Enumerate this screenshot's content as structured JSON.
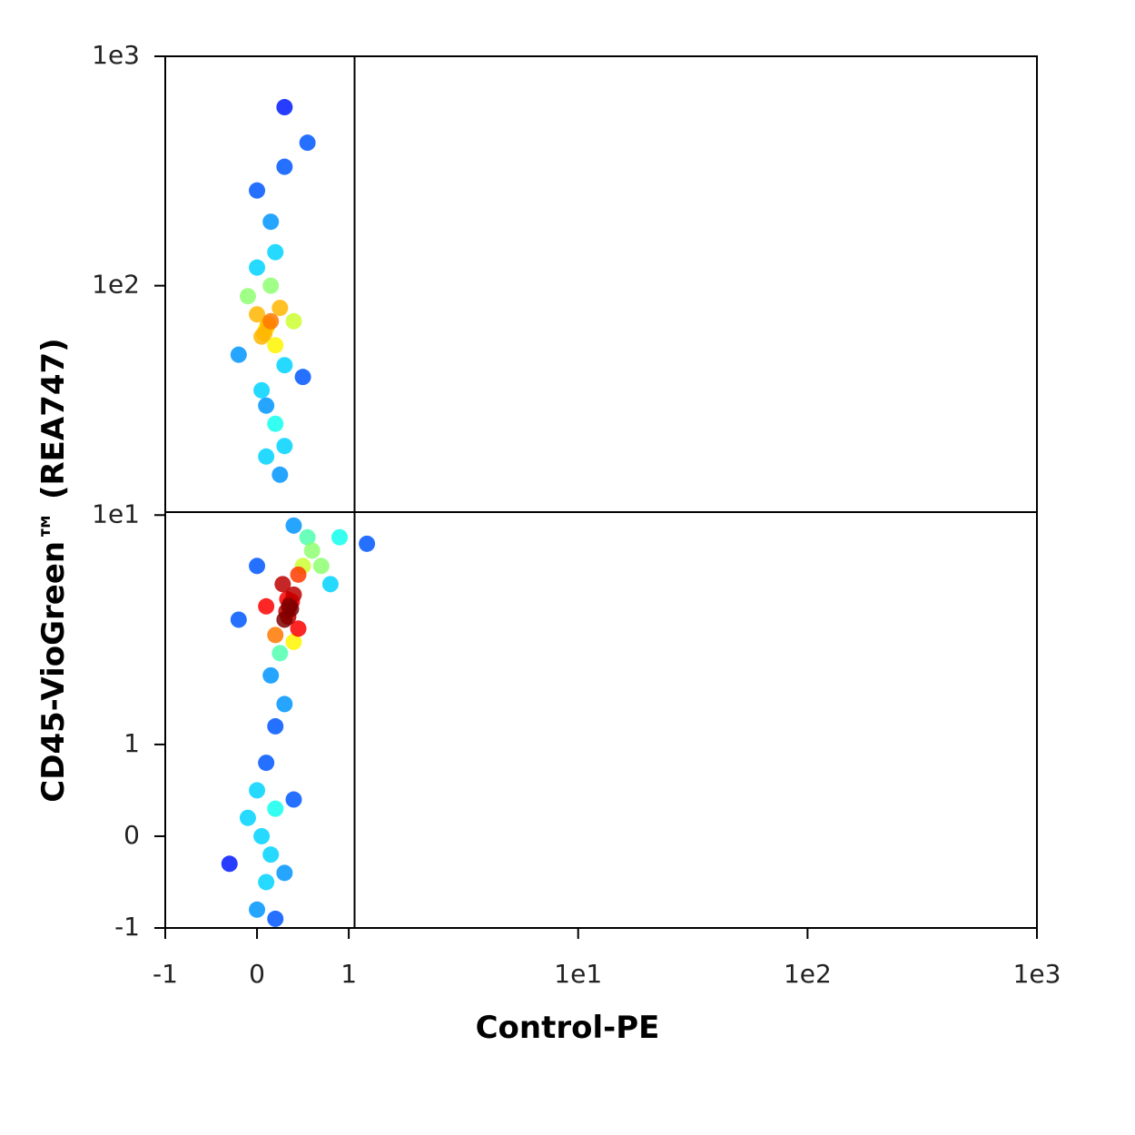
{
  "chart_data": {
    "type": "scatter",
    "scale": "biexponential",
    "xlabel": "Control-PE",
    "ylabel": "CD45-VioGreen™ (REA747)",
    "xlim": [
      -1,
      1000
    ],
    "ylim": [
      -1,
      1000
    ],
    "xticks": [
      -1,
      0,
      1,
      {
        "value": 10,
        "label": "1e1"
      },
      {
        "value": 100,
        "label": "1e2"
      },
      {
        "value": 1000,
        "label": "1e3"
      }
    ],
    "yticks": [
      -1,
      0,
      1,
      {
        "value": 10,
        "label": "1e1"
      },
      {
        "value": 100,
        "label": "1e2"
      },
      {
        "value": 1000,
        "label": "1e3"
      }
    ],
    "quadrant_gate": {
      "x": 1.06,
      "y": 10.3
    },
    "x": [
      0.1,
      0.15,
      0.05,
      0.2,
      0.0,
      0.12,
      0.08,
      0.25,
      -0.1,
      0.3,
      0.15,
      -0.2,
      0.4,
      0.5,
      0.0,
      0.2,
      0.1,
      0.2,
      0.05,
      0.3,
      0.1,
      0.25,
      0.3,
      0.55,
      0.3,
      0.0,
      0.15,
      0.35,
      0.32,
      0.38,
      0.3,
      0.4,
      0.34,
      0.36,
      0.28,
      0.45,
      0.2,
      0.5,
      0.25,
      0.6,
      0.15,
      0.55,
      0.4,
      0.7,
      0.1,
      -0.2,
      0.8,
      0.3,
      0.2,
      0.4,
      0.33,
      0.37,
      0.9,
      1.2,
      0.45,
      0.0,
      0.1,
      0.0,
      0.2,
      0.05,
      0.15,
      0.1,
      -0.1,
      0.3,
      0.0,
      0.2,
      -0.3,
      0.4
    ],
    "y": [
      65,
      70,
      60,
      55,
      75,
      68,
      62,
      80,
      90,
      45,
      100,
      50,
      70,
      40,
      120,
      140,
      30,
      25,
      35,
      20,
      18,
      15,
      600,
      420,
      330,
      260,
      190,
      4,
      3.8,
      4.2,
      3.5,
      4.5,
      3.6,
      4.1,
      5,
      5.5,
      3,
      6,
      2.5,
      7,
      2,
      8,
      9,
      6,
      4,
      3.5,
      5,
      1.5,
      1.2,
      2.8,
      4.3,
      3.9,
      8,
      7.5,
      3.2,
      6,
      0.8,
      0.5,
      0.3,
      0,
      -0.2,
      -0.5,
      0.2,
      -0.4,
      -0.8,
      -0.9,
      -0.3,
      0.4
    ]
  }
}
